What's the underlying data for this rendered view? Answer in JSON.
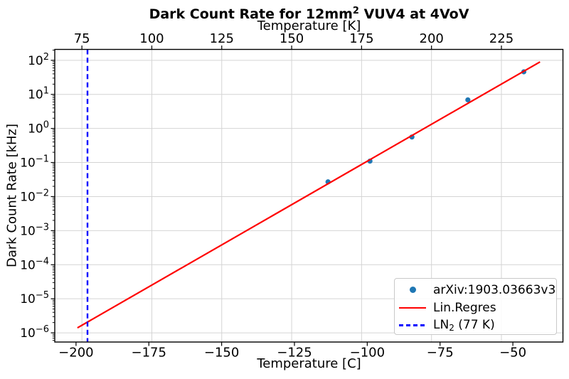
{
  "figure": {
    "title": {
      "pre": "Dark Count Rate for 12mm",
      "sup": "2",
      "post": " VUV4 at 4VoV"
    },
    "top_axis_label": "Temperature [K]",
    "bottom_axis_label": "Temperature [C]",
    "y_axis_label": "Dark Count Rate [kHz]"
  },
  "chart_data": {
    "type": "scatter",
    "title": "Dark Count Rate for 12mm² VUV4 at 4VoV",
    "x_top": {
      "label": "Temperature [K]",
      "ticks": [
        75,
        100,
        125,
        150,
        175,
        200,
        225
      ],
      "range": [
        65.3,
        247.0
      ]
    },
    "x_bottom": {
      "label": "Temperature [C]",
      "ticks": [
        -200,
        -175,
        -150,
        -125,
        -100,
        -75,
        -50
      ],
      "range": [
        -207.3,
        -32.8
      ]
    },
    "y_axis": {
      "label": "Dark Count Rate [kHz]",
      "scale": "log",
      "base": "10",
      "tick_exponents": [
        2,
        1,
        0,
        -1,
        -2,
        -3,
        -4,
        -5,
        -6
      ],
      "log_range": [
        -6.27,
        2.32
      ]
    },
    "series": [
      {
        "name": "arXiv:1903.03663v3",
        "type": "scatter",
        "color": "#1f77b4",
        "temperature_K": [
          163,
          178,
          193,
          213,
          233
        ],
        "dcr_kHz": [
          0.027,
          0.11,
          0.56,
          6.9,
          46
        ]
      },
      {
        "name": "Lin.Regres",
        "type": "line",
        "color": "#ff0000",
        "temperature_K": [
          73.4,
          238.8
        ],
        "dcr_kHz": [
          1.4e-06,
          90
        ]
      },
      {
        "name": "LN2 (77 K)",
        "type": "vline",
        "style": "dashed",
        "color": "#0000ff",
        "temperature_K": 77
      }
    ],
    "grid": true,
    "legend_position": "lower right"
  },
  "legend": {
    "items": [
      {
        "label": "arXiv:1903.03663v3",
        "marker": "dot",
        "color": "#1f77b4"
      },
      {
        "label": "Lin.Regres",
        "marker": "solid-line",
        "color": "#ff0000"
      },
      {
        "label_pre": "LN",
        "label_sub": "2",
        "label_post": " (77 K)",
        "marker": "dashed-line",
        "color": "#0000ff"
      }
    ]
  },
  "colors": {
    "grid": "#d4d4d4",
    "axis": "#000000",
    "text": "#000000",
    "scatter": "#1f77b4",
    "regression": "#ff0000",
    "ln2": "#0000ff",
    "background": "#ffffff"
  }
}
